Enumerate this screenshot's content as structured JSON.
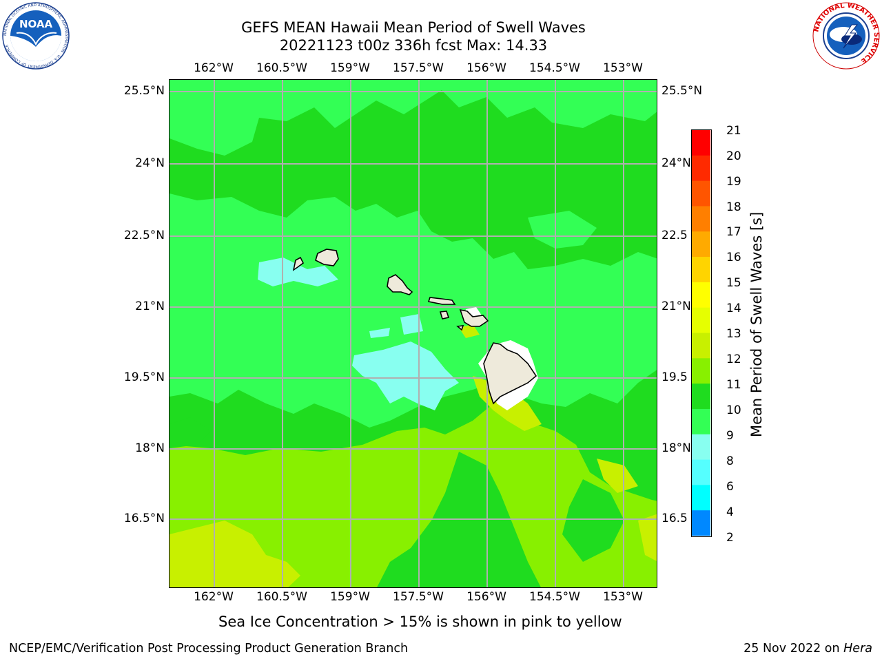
{
  "title": {
    "line1": "GEFS MEAN Hawaii Mean Period of Swell Waves",
    "line2": "20221123 t00z 336h fcst   Max: 14.33"
  },
  "map": {
    "lon_ticks": [
      "162°W",
      "160.5°W",
      "159°W",
      "157.5°W",
      "156°W",
      "154.5°W",
      "153°W"
    ],
    "lat_ticks": [
      "25.5°N",
      "24°N",
      "22.5°N",
      "21°N",
      "19.5°N",
      "18°N",
      "16.5°N"
    ],
    "lat_ticks_right": [
      "25.5°N",
      "24°N",
      "22.5",
      "21°N",
      "19.5",
      "18°N",
      "16.5"
    ],
    "field_colors": {
      "green_11_12": "#1fdc1f",
      "green_10_11": "#33ff55",
      "cyan_9_10": "#88fff0",
      "lime_12_13": "#88f000",
      "yellowgreen_13_14": "#c8f000",
      "yellow_14_15": "#e6ff00",
      "land": "#eeeadb"
    }
  },
  "colorbar": {
    "label": "Mean Period of Swell Waves [s]",
    "ticks": [
      "21",
      "20",
      "19",
      "18",
      "17",
      "16",
      "15",
      "14",
      "13",
      "12",
      "11",
      "10",
      "9",
      "8",
      "6",
      "4",
      "2"
    ],
    "colors": [
      "#ff0000",
      "#ff2a00",
      "#ff5500",
      "#ff7f00",
      "#ffaa00",
      "#ffd400",
      "#ffff00",
      "#e6ff00",
      "#c8f000",
      "#88f000",
      "#1fdc1f",
      "#33ff55",
      "#88fff0",
      "#55ffff",
      "#00ffff",
      "#0088ff",
      "#0000ff"
    ]
  },
  "note": "Sea Ice Concentration > 15% is shown in pink to yellow",
  "footer": {
    "left": "NCEP/EMC/Verification Post Processing Product Generation Branch",
    "right_prefix": "25 Nov 2022 on ",
    "right_host": "Hera"
  },
  "logos": {
    "noaa_text": "NOAA",
    "noaa_ring": "NATIONAL OCEANIC AND ATMOSPHERIC ADMINISTRATION · U.S. DEPARTMENT OF COMMERCE",
    "nws_ring": "NATIONAL WEATHER SERVICE"
  }
}
